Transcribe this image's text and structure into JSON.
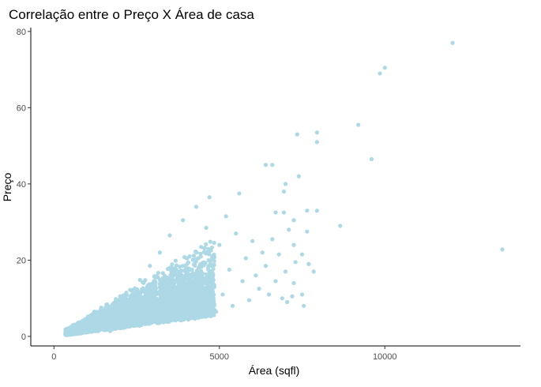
{
  "chart_data": {
    "type": "scatter",
    "title": "Correlação entre o Preço X Área de casa",
    "xlabel": "Área (sqfl)",
    "ylabel": "Preço",
    "xlim": [
      -700,
      14100
    ],
    "ylim": [
      -2.5,
      81
    ],
    "xticks": [
      0,
      5000,
      10000
    ],
    "yticks": [
      0,
      20,
      40,
      60,
      80
    ],
    "xtick_labels": [
      "0",
      "5000",
      "10000"
    ],
    "ytick_labels": [
      "0",
      "20",
      "40",
      "60",
      "80"
    ],
    "grid": false,
    "point_color": "#add8e6",
    "dense_cluster_note_points": [
      [
        350,
        1.7
      ],
      [
        600,
        2.5
      ],
      [
        800,
        3.5
      ],
      [
        900,
        1.2
      ],
      [
        1000,
        4.5
      ],
      [
        1200,
        2.0
      ],
      [
        1300,
        5.5
      ],
      [
        1500,
        3.2
      ],
      [
        1600,
        7.0
      ],
      [
        1700,
        1.4
      ],
      [
        1800,
        8.5
      ],
      [
        1900,
        4.8
      ],
      [
        2000,
        10.5
      ],
      [
        2100,
        2.6
      ],
      [
        2200,
        6.2
      ],
      [
        2300,
        12.2
      ],
      [
        2400,
        3.5
      ],
      [
        2500,
        9.0
      ],
      [
        2600,
        14.8
      ],
      [
        2700,
        5.0
      ],
      [
        2800,
        11.0
      ],
      [
        2900,
        18.5
      ],
      [
        3000,
        3.8
      ],
      [
        3100,
        7.5
      ],
      [
        3200,
        22.0
      ],
      [
        3300,
        13.0
      ],
      [
        3400,
        5.5
      ],
      [
        3500,
        26.5
      ],
      [
        3600,
        9.8
      ],
      [
        3700,
        16.5
      ],
      [
        3800,
        4.5
      ],
      [
        3900,
        30.5
      ],
      [
        4000,
        12.5
      ],
      [
        4100,
        21.0
      ],
      [
        4200,
        7.2
      ],
      [
        4300,
        34.0
      ],
      [
        4400,
        18.0
      ],
      [
        4500,
        9.5
      ],
      [
        4600,
        28.5
      ],
      [
        4700,
        36.5
      ],
      [
        4800,
        14.0
      ],
      [
        4900,
        6.5
      ],
      [
        5000,
        24.0
      ],
      [
        5100,
        11.0
      ],
      [
        5200,
        31.5
      ],
      [
        5300,
        17.5
      ],
      [
        5400,
        8.0
      ],
      [
        5500,
        27.0
      ],
      [
        5600,
        37.5
      ],
      [
        5700,
        14.5
      ],
      [
        5800,
        20.5
      ],
      [
        5900,
        9.5
      ],
      [
        6000,
        25.0
      ],
      [
        6100,
        16.0
      ],
      [
        6200,
        12.5
      ],
      [
        6300,
        22.0
      ],
      [
        6400,
        18.5
      ],
      [
        6500,
        11.0
      ],
      [
        6600,
        25.5
      ],
      [
        6700,
        14.5
      ],
      [
        6800,
        21.5
      ],
      [
        6900,
        10.0
      ],
      [
        7000,
        17.0
      ],
      [
        7100,
        28.0
      ]
    ],
    "outliers": [
      [
        12050,
        77.0
      ],
      [
        10000,
        70.5
      ],
      [
        9850,
        69.0
      ],
      [
        9200,
        55.5
      ],
      [
        7950,
        53.5
      ],
      [
        7350,
        53.0
      ],
      [
        7950,
        51.0
      ],
      [
        9600,
        46.5
      ],
      [
        6400,
        45.0
      ],
      [
        6600,
        45.0
      ],
      [
        7400,
        42.0
      ],
      [
        7000,
        40.0
      ],
      [
        6950,
        38.0
      ],
      [
        7650,
        33.0
      ],
      [
        7950,
        33.0
      ],
      [
        6700,
        32.5
      ],
      [
        6950,
        32.5
      ],
      [
        7250,
        30.5
      ],
      [
        8650,
        29.0
      ],
      [
        7650,
        27.5
      ],
      [
        7250,
        24.0
      ],
      [
        13550,
        22.8
      ],
      [
        7500,
        21.5
      ],
      [
        7300,
        19.5
      ],
      [
        7700,
        19.0
      ],
      [
        7850,
        17.0
      ],
      [
        7250,
        14.0
      ],
      [
        7500,
        11.0
      ],
      [
        7200,
        10.5
      ],
      [
        7550,
        8.0
      ],
      [
        7050,
        9.0
      ]
    ]
  }
}
